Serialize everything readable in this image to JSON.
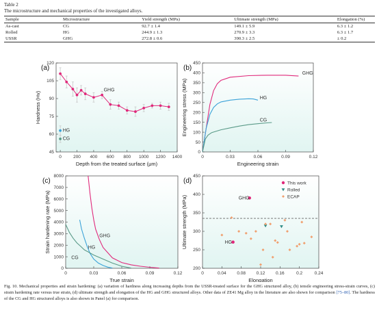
{
  "table": {
    "label": "Table 2",
    "caption": "The microstructure and mechanical properties of the investigated alloys.",
    "headers": [
      "Sample",
      "Microstructure",
      "Yield strength (MPa)",
      "Ultimate strength (MPa)",
      "Elongation (%)"
    ],
    "rows": [
      [
        "As-cast",
        "CG",
        "92.7 ± 1.4",
        "149.1 ± 5.9",
        "6.3 ± 1.2"
      ],
      [
        "Rolled",
        "HG",
        "244.9 ± 1.3",
        "270.9 ± 3.3",
        "6.3 ± 1.7"
      ],
      [
        "USSR",
        "GHG",
        "272.8 ± 0.6",
        "390.3 ± 2.5",
        "± 0.2"
      ]
    ]
  },
  "colors": {
    "ghg": "#e0287a",
    "hg": "#3aa2d8",
    "cg": "#5a9a88",
    "ecap": "#f0a070",
    "rolled": "#2e8c86",
    "dashed": "#666666"
  },
  "chart_data": [
    {
      "panel": "(a)",
      "type": "scatter",
      "xlabel": "Depth from the treated surface (μm)",
      "ylabel": "Hardness (Hv)",
      "xlim": [
        -50,
        1400
      ],
      "ylim": [
        45,
        120
      ],
      "xticks": [
        0,
        200,
        400,
        600,
        800,
        1000,
        1200,
        1400
      ],
      "yticks": [
        45,
        60,
        75,
        90,
        105,
        120
      ],
      "annotations": [
        "GHG",
        "HG",
        "CG"
      ],
      "series": [
        {
          "name": "GHG",
          "x": [
            0,
            75,
            150,
            200,
            250,
            300,
            400,
            500,
            600,
            700,
            800,
            900,
            1000,
            1100,
            1200,
            1300
          ],
          "y": [
            111,
            104,
            98,
            93,
            97,
            94,
            91,
            93,
            85,
            84,
            80,
            79,
            82,
            84,
            84,
            83
          ],
          "err": [
            5,
            5,
            6,
            6,
            4,
            5,
            4,
            3,
            4,
            3,
            3,
            4,
            3,
            2,
            3,
            3
          ]
        },
        {
          "name": "HG",
          "x": [
            0
          ],
          "y": [
            63
          ],
          "err": [
            4
          ]
        },
        {
          "name": "CG",
          "x": [
            0
          ],
          "y": [
            56
          ],
          "err": [
            3
          ]
        }
      ]
    },
    {
      "panel": "(b)",
      "type": "line",
      "xlabel": "Engineering strain",
      "ylabel": "Engineering stress (MPa)",
      "xlim": [
        0,
        0.12
      ],
      "ylim": [
        0,
        450
      ],
      "xticks": [
        0.0,
        0.03,
        0.06,
        0.09,
        0.12
      ],
      "yticks": [
        0,
        50,
        100,
        150,
        200,
        250,
        300,
        350,
        400,
        450
      ],
      "series": [
        {
          "name": "GHG",
          "x": [
            0,
            0.004,
            0.008,
            0.012,
            0.016,
            0.02,
            0.03,
            0.05,
            0.07,
            0.09,
            0.104
          ],
          "y": [
            0,
            120,
            240,
            310,
            345,
            362,
            378,
            386,
            388,
            388,
            384
          ]
        },
        {
          "name": "HG",
          "x": [
            0,
            0.004,
            0.008,
            0.012,
            0.016,
            0.02,
            0.03,
            0.04,
            0.05,
            0.055,
            0.06
          ],
          "y": [
            0,
            120,
            190,
            225,
            243,
            253,
            262,
            267,
            269,
            268,
            262
          ]
        },
        {
          "name": "CG",
          "x": [
            0,
            0.003,
            0.006,
            0.01,
            0.02,
            0.03,
            0.04,
            0.05,
            0.06,
            0.07,
            0.075
          ],
          "y": [
            0,
            65,
            85,
            98,
            112,
            122,
            131,
            138,
            143,
            147,
            149
          ]
        }
      ]
    },
    {
      "panel": "(c)",
      "type": "line",
      "xlabel": "True strain",
      "ylabel": "Strain hardening rate (MPa)",
      "xlim": [
        0,
        0.12
      ],
      "ylim": [
        0,
        8000
      ],
      "xticks": [
        0.0,
        0.03,
        0.06,
        0.09,
        0.12
      ],
      "yticks": [
        0,
        1000,
        2000,
        3000,
        4000,
        5000,
        6000,
        7000,
        8000
      ],
      "series": [
        {
          "name": "GHG",
          "x": [
            0.024,
            0.026,
            0.028,
            0.03,
            0.032,
            0.036,
            0.04,
            0.05,
            0.06,
            0.07,
            0.08,
            0.09,
            0.1
          ],
          "y": [
            8000,
            6500,
            5200,
            4200,
            3400,
            2500,
            1800,
            900,
            500,
            300,
            180,
            90,
            20
          ]
        },
        {
          "name": "HG",
          "x": [
            0.015,
            0.017,
            0.02,
            0.023,
            0.026,
            0.03,
            0.035,
            0.04,
            0.045,
            0.05
          ],
          "y": [
            4200,
            3400,
            2600,
            1900,
            1300,
            800,
            450,
            240,
            100,
            20
          ]
        },
        {
          "name": "CG",
          "x": [
            0.0,
            0.004,
            0.008,
            0.012,
            0.016,
            0.02,
            0.03,
            0.04,
            0.05,
            0.06,
            0.07
          ],
          "y": [
            3800,
            3100,
            2600,
            2200,
            1900,
            1600,
            1150,
            800,
            450,
            180,
            20
          ]
        }
      ]
    },
    {
      "panel": "(d)",
      "type": "scatter",
      "xlabel": "Elongation",
      "ylabel": "Ultimate strength (MPa)",
      "xlim": [
        0,
        0.24
      ],
      "ylim": [
        200,
        450
      ],
      "xticks": [
        0.0,
        0.04,
        0.08,
        0.12,
        0.16,
        0.2,
        0.24
      ],
      "yticks": [
        200,
        250,
        300,
        350,
        400,
        450
      ],
      "legend": [
        "This work",
        "Rolled",
        "ECAP"
      ],
      "legend_position": "top-right",
      "annotations": [
        "GHG",
        "HG"
      ],
      "reference_line": 335,
      "series": [
        {
          "name": "This work",
          "x": [
            0.097,
            0.063
          ],
          "y": [
            390.3,
            270.9
          ],
          "labels": [
            "GHG",
            "HG"
          ]
        },
        {
          "name": "Rolled",
          "x": [
            0.13,
            0.163
          ],
          "y": [
            315,
            313
          ]
        },
        {
          "name": "ECAP",
          "x": [
            0.04,
            0.06,
            0.075,
            0.09,
            0.1,
            0.11,
            0.12,
            0.125,
            0.13,
            0.14,
            0.145,
            0.15,
            0.155,
            0.17,
            0.175,
            0.18,
            0.195,
            0.2,
            0.205,
            0.21,
            0.225
          ],
          "y": [
            290,
            337,
            300,
            295,
            280,
            300,
            210,
            250,
            320,
            320,
            230,
            275,
            270,
            330,
            300,
            250,
            260,
            265,
            325,
            268,
            285
          ]
        }
      ]
    }
  ],
  "caption": {
    "main": "Fig. 10. Mechanical properties and strain hardening: (a) variation of hardness along increasing depths from the USSR-treated surface for the GHG structured alloy, (b) tensile engineering stress-strain curves, (c) strain hardening rate versus true strain, (d) ultimate strength and elongation of the HG and GHG structured alloys. Other data of ZE41 Mg alloy in the literature are also shown for comparison",
    "ref": "[75–80]",
    "tail": ". The hardness of the CG and HG structured alloys is also shown in Panel (a) for comparison."
  }
}
